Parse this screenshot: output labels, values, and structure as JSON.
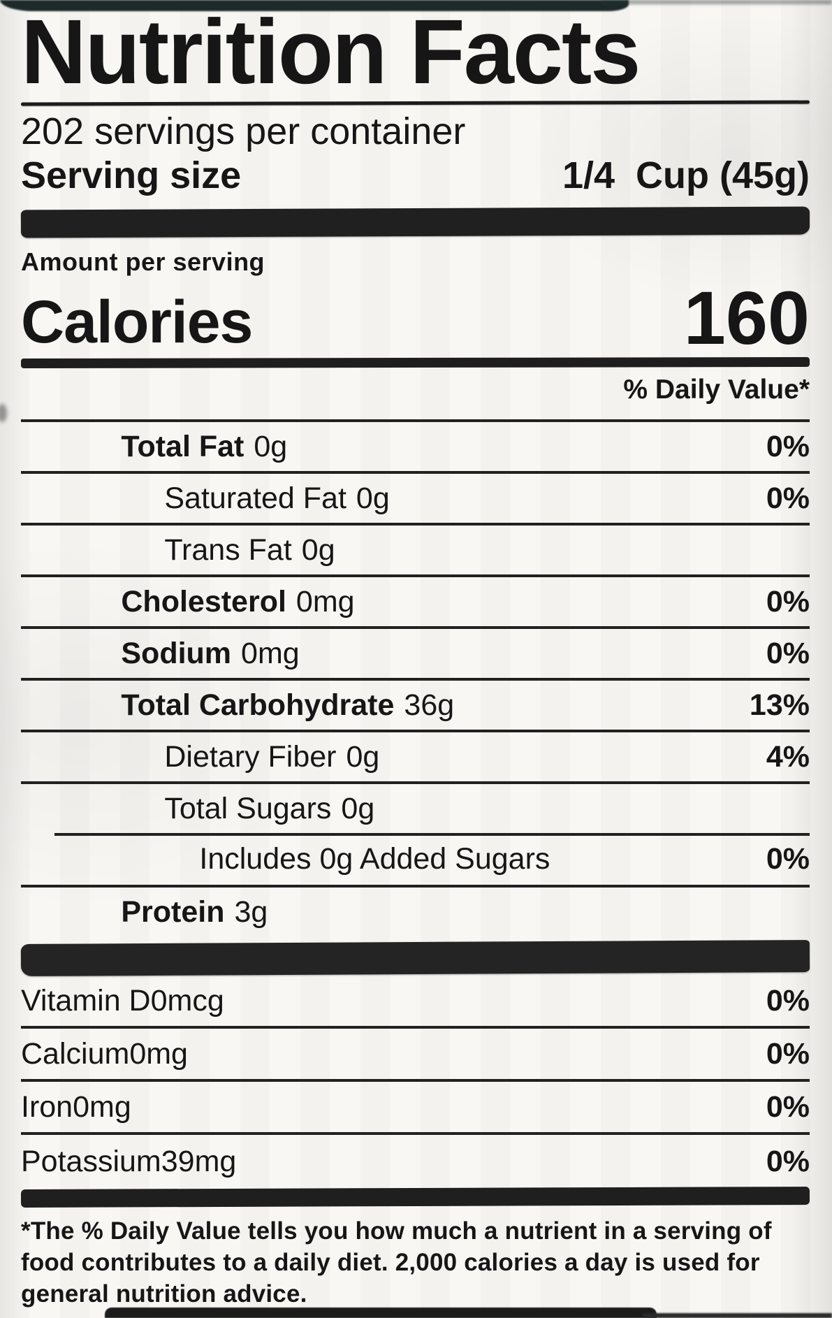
{
  "colors": {
    "ink": "#1a1a1a",
    "paper": "#f8f7f4",
    "package_edge": "#1d2a29"
  },
  "label": {
    "title": "Nutrition Facts",
    "servings_per_container": "202 servings per container",
    "serving_size_label": "Serving size",
    "serving_size_value": "1/4  Cup (45g)",
    "amount_per_serving": "Amount per serving",
    "calories_label": "Calories",
    "calories_value": "160",
    "daily_value_header": "% Daily Value*",
    "rows": [
      {
        "name": "Total Fat",
        "amount": "0g",
        "dv": "0%",
        "indent": 0,
        "bold": true
      },
      {
        "name": "Saturated Fat",
        "amount": "0g",
        "dv": "0%",
        "indent": 1,
        "bold": false
      },
      {
        "name": "Trans Fat",
        "amount": "0g",
        "dv": "",
        "indent": 1,
        "bold": false
      },
      {
        "name": "Cholesterol",
        "amount": "0mg",
        "dv": "0%",
        "indent": 0,
        "bold": true
      },
      {
        "name": "Sodium",
        "amount": "0mg",
        "dv": "0%",
        "indent": 0,
        "bold": true
      },
      {
        "name": "Total Carbohydrate",
        "amount": "36g",
        "dv": "13%",
        "indent": 0,
        "bold": true
      },
      {
        "name": "Dietary Fiber",
        "amount": "0g",
        "dv": "4%",
        "indent": 1,
        "bold": false
      },
      {
        "name": "Total Sugars",
        "amount": "0g",
        "dv": "",
        "indent": 1,
        "bold": false
      },
      {
        "name": "Includes 0g Added Sugars",
        "amount": "",
        "dv": "0%",
        "indent": 2,
        "bold": false,
        "indented_rule": true
      },
      {
        "name": "Protein",
        "amount": "3g",
        "dv": "",
        "indent": 0,
        "bold": true
      }
    ],
    "micronutrients": [
      {
        "name": "Vitamin D",
        "amount": "0mcg",
        "dv": "0%"
      },
      {
        "name": "Calcium",
        "amount": "0mg",
        "dv": "0%"
      },
      {
        "name": "Iron",
        "amount": "0mg",
        "dv": "0%"
      },
      {
        "name": "Potassium",
        "amount": "39mg",
        "dv": "0%"
      }
    ],
    "footnote": "*The % Daily Value tells you how much a nutrient in a serving of food contributes to a daily diet. 2,000 calories a day is used for general nutrition advice."
  }
}
